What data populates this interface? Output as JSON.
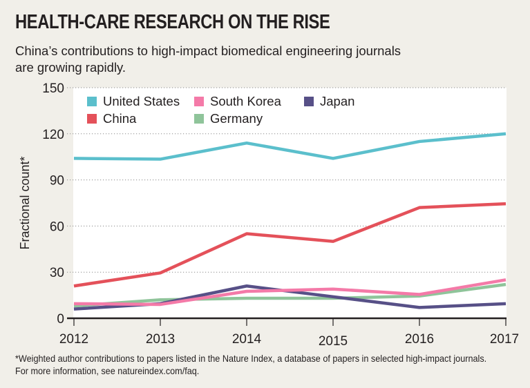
{
  "header": {
    "title": "HEALTH-CARE RESEARCH ON THE RISE",
    "subtitle": "China’s contributions to high-impact biomedical engineering journals are growing rapidly."
  },
  "footnote": "*Weighted author contributions to papers listed in the Nature Index, a database of papers in selected high-impact journals. For more information, see natureindex.com/faq.",
  "chart_data": {
    "type": "line",
    "title": "HEALTH-CARE RESEARCH ON THE RISE",
    "subtitle": "China’s contributions to high-impact biomedical engineering journals are growing rapidly.",
    "xlabel": "",
    "ylabel": "Fractional count*",
    "x": [
      "2012",
      "2013",
      "2014",
      "2015",
      "2016",
      "2017"
    ],
    "ylim": [
      0,
      150
    ],
    "yticks": [
      0,
      30,
      60,
      90,
      120,
      150
    ],
    "grid": true,
    "legend_position": "top-left",
    "series": [
      {
        "name": "United States",
        "color": "#5bbfcc",
        "values": [
          104,
          103.5,
          114,
          104,
          115,
          120
        ]
      },
      {
        "name": "China",
        "color": "#e4515a",
        "values": [
          21,
          29.5,
          55,
          50,
          72,
          74.5
        ]
      },
      {
        "name": "South Korea",
        "color": "#f47aa8",
        "values": [
          9.5,
          9,
          17.5,
          19,
          15.5,
          25
        ]
      },
      {
        "name": "Germany",
        "color": "#8fc49a",
        "values": [
          8,
          12,
          13,
          13,
          14.5,
          22
        ]
      },
      {
        "name": "Japan",
        "color": "#575087",
        "values": [
          6,
          9.5,
          21,
          14,
          7,
          9.5
        ]
      }
    ]
  },
  "legend_layout": [
    {
      "series_index": 0,
      "row": 0,
      "col": 0
    },
    {
      "series_index": 2,
      "row": 0,
      "col": 1
    },
    {
      "series_index": 4,
      "row": 0,
      "col": 2
    },
    {
      "series_index": 1,
      "row": 1,
      "col": 0
    },
    {
      "series_index": 3,
      "row": 1,
      "col": 1
    }
  ]
}
